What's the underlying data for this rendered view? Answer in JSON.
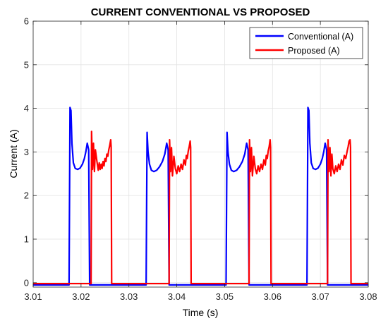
{
  "chart_data": {
    "type": "line",
    "title": "CURRENT CONVENTIONAL VS PROPOSED",
    "xlabel": "Time (s)",
    "ylabel": "Current (A)",
    "xlim": [
      3.01,
      3.08
    ],
    "ylim": [
      -0.1,
      6
    ],
    "x_ticks": [
      3.01,
      3.02,
      3.03,
      3.04,
      3.05,
      3.06,
      3.07,
      3.08
    ],
    "x_tick_labels": [
      "3.01",
      "3.02",
      "3.03",
      "3.04",
      "3.05",
      "3.06",
      "3.07",
      "3.08"
    ],
    "y_ticks": [
      0,
      1,
      2,
      3,
      4,
      5,
      6
    ],
    "y_tick_labels": [
      "0",
      "1",
      "2",
      "3",
      "4",
      "5",
      "6"
    ],
    "grid": true,
    "legend_position": "top-right",
    "series": [
      {
        "name": "Conventional (A)",
        "color": "#0000ff",
        "x": [
          3.01,
          3.0175,
          3.0177,
          3.0179,
          3.0181,
          3.0184,
          3.0188,
          3.0193,
          3.0198,
          3.0203,
          3.0207,
          3.021,
          3.0213,
          3.0216,
          3.0218,
          3.0219,
          3.0336,
          3.0338,
          3.034,
          3.0343,
          3.0347,
          3.0352,
          3.0358,
          3.0364,
          3.037,
          3.0375,
          3.0379,
          3.0382,
          3.0384,
          3.0385,
          3.0503,
          3.0505,
          3.0507,
          3.051,
          3.0514,
          3.0519,
          3.0525,
          3.0531,
          3.0537,
          3.0542,
          3.0546,
          3.0549,
          3.0551,
          3.0552,
          3.0672,
          3.0674,
          3.0676,
          3.0678,
          3.0681,
          3.0685,
          3.069,
          3.0695,
          3.07,
          3.0704,
          3.0707,
          3.071,
          3.0713,
          3.0715,
          3.0716,
          3.08
        ],
        "y": [
          -0.05,
          -0.05,
          4.02,
          3.95,
          3.2,
          2.75,
          2.62,
          2.6,
          2.63,
          2.72,
          2.85,
          3.0,
          3.2,
          3.05,
          -0.05,
          -0.05,
          -0.05,
          3.45,
          3.0,
          2.72,
          2.58,
          2.55,
          2.58,
          2.66,
          2.78,
          2.95,
          3.2,
          3.05,
          -0.05,
          -0.05,
          -0.05,
          3.45,
          3.0,
          2.72,
          2.58,
          2.55,
          2.58,
          2.66,
          2.78,
          2.95,
          3.2,
          3.05,
          -0.05,
          -0.05,
          -0.05,
          4.02,
          3.95,
          3.2,
          2.75,
          2.62,
          2.6,
          2.63,
          2.72,
          2.85,
          3.0,
          3.2,
          3.05,
          -0.05,
          -0.05,
          -0.05
        ]
      },
      {
        "name": "Proposed (A)",
        "color": "#ff0000",
        "x": [
          3.01,
          3.0221,
          3.0222,
          3.0224,
          3.0226,
          3.0228,
          3.023,
          3.0233,
          3.0236,
          3.0238,
          3.024,
          3.0242,
          3.0244,
          3.0246,
          3.0248,
          3.025,
          3.0252,
          3.0254,
          3.0256,
          3.0258,
          3.026,
          3.0262,
          3.0263,
          3.0264,
          3.0384,
          3.0385,
          3.0387,
          3.0389,
          3.0391,
          3.0394,
          3.0397,
          3.04,
          3.0403,
          3.0406,
          3.0409,
          3.0412,
          3.0415,
          3.0418,
          3.042,
          3.0422,
          3.0424,
          3.0426,
          3.0428,
          3.0429,
          3.043,
          3.0551,
          3.0552,
          3.0554,
          3.0556,
          3.0558,
          3.0561,
          3.0564,
          3.0567,
          3.057,
          3.0573,
          3.0576,
          3.0579,
          3.0582,
          3.0585,
          3.0587,
          3.0589,
          3.0591,
          3.0593,
          3.0595,
          3.0596,
          3.0597,
          3.0715,
          3.0716,
          3.0718,
          3.072,
          3.0722,
          3.0724,
          3.0726,
          3.0729,
          3.0732,
          3.0735,
          3.0738,
          3.0741,
          3.0744,
          3.0747,
          3.075,
          3.0753,
          3.0756,
          3.0758,
          3.076,
          3.0762,
          3.0763,
          3.0764,
          3.08
        ],
        "y": [
          -0.02,
          -0.02,
          3.47,
          2.6,
          3.2,
          2.55,
          3.05,
          2.8,
          2.58,
          2.75,
          2.6,
          2.72,
          2.62,
          2.78,
          2.68,
          2.85,
          2.78,
          2.95,
          2.9,
          3.05,
          3.15,
          3.28,
          3.1,
          -0.02,
          -0.02,
          3.28,
          2.55,
          3.1,
          2.45,
          2.9,
          2.62,
          2.5,
          2.68,
          2.55,
          2.72,
          2.6,
          2.82,
          2.7,
          2.92,
          2.85,
          3.02,
          3.12,
          3.25,
          3.1,
          -0.02,
          -0.02,
          3.28,
          2.55,
          3.1,
          2.45,
          2.9,
          2.62,
          2.5,
          2.68,
          2.55,
          2.72,
          2.6,
          2.82,
          2.7,
          2.92,
          2.85,
          3.02,
          3.12,
          3.28,
          3.1,
          -0.02,
          -0.02,
          3.28,
          2.55,
          3.1,
          2.45,
          2.95,
          2.62,
          2.5,
          2.68,
          2.55,
          2.72,
          2.6,
          2.82,
          2.7,
          2.92,
          2.85,
          3.02,
          3.12,
          3.25,
          3.28,
          3.1,
          -0.02,
          -0.02
        ]
      }
    ]
  }
}
